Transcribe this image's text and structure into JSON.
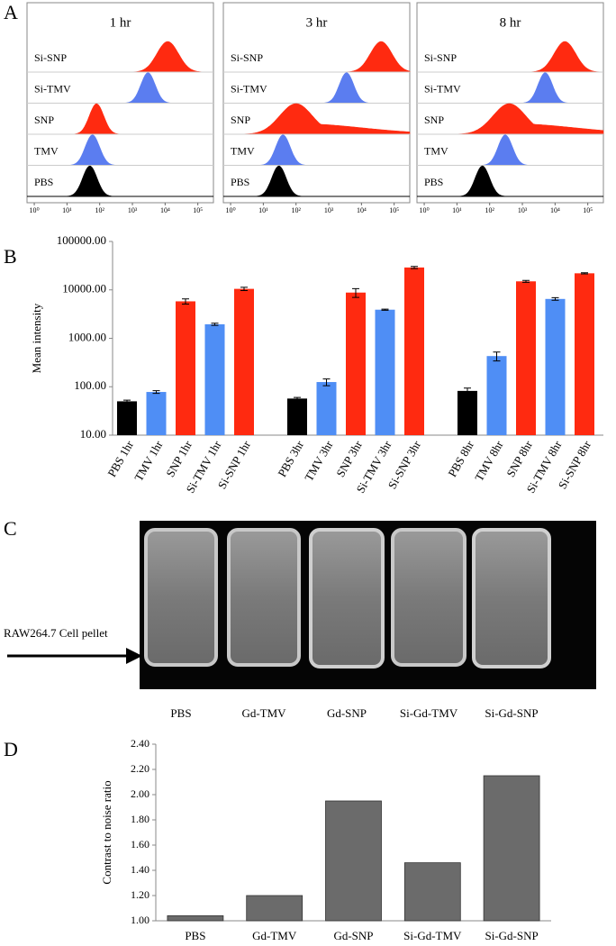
{
  "panel_labels": [
    "A",
    "B",
    "C",
    "D"
  ],
  "chart_data": [
    {
      "type": "flow",
      "title": "1 hr",
      "log_x": true,
      "xlim": [
        0.6,
        300000
      ],
      "xticks": [
        {
          "value": 1,
          "label": "10⁰"
        },
        {
          "value": 10,
          "label": "10¹"
        },
        {
          "value": 100,
          "label": "10²"
        },
        {
          "value": 1000,
          "label": "10³"
        },
        {
          "value": 10000,
          "label": "10⁴"
        },
        {
          "value": 100000,
          "label": "10⁵"
        }
      ],
      "series": [
        {
          "name": "Si-SNP",
          "color": "#ff2a10",
          "peak": 12000
        },
        {
          "name": "Si-TMV",
          "color": "#5b7df0",
          "peak": 3000
        },
        {
          "name": "SNP",
          "color": "#ff2a10",
          "peak": 80
        },
        {
          "name": "TMV",
          "color": "#5b7df0",
          "peak": 60
        },
        {
          "name": "PBS",
          "color": "#000000",
          "peak": 50
        }
      ]
    },
    {
      "type": "flow",
      "title": "3 hr",
      "log_x": true,
      "xlim": [
        0.6,
        300000
      ],
      "xticks": [
        {
          "value": 1,
          "label": "10⁰"
        },
        {
          "value": 10,
          "label": "10¹"
        },
        {
          "value": 100,
          "label": "10²"
        },
        {
          "value": 1000,
          "label": "10³"
        },
        {
          "value": 10000,
          "label": "10⁴"
        },
        {
          "value": 100000,
          "label": "10⁵"
        }
      ],
      "series": [
        {
          "name": "Si-SNP",
          "color": "#ff2a10",
          "peak": 40000
        },
        {
          "name": "Si-TMV",
          "color": "#5b7df0",
          "peak": 3500
        },
        {
          "name": "SNP",
          "color": "#ff2a10",
          "peak": 100
        },
        {
          "name": "TMV",
          "color": "#5b7df0",
          "peak": 40
        },
        {
          "name": "PBS",
          "color": "#000000",
          "peak": 30
        }
      ]
    },
    {
      "type": "flow",
      "title": "8 hr",
      "log_x": true,
      "xlim": [
        0.6,
        300000
      ],
      "xticks": [
        {
          "value": 1,
          "label": "10⁰"
        },
        {
          "value": 10,
          "label": "10¹"
        },
        {
          "value": 100,
          "label": "10²"
        },
        {
          "value": 1000,
          "label": "10³"
        },
        {
          "value": 10000,
          "label": "10⁴"
        },
        {
          "value": 100000,
          "label": "10⁵"
        }
      ],
      "series": [
        {
          "name": "Si-SNP",
          "color": "#ff2a10",
          "peak": 20000
        },
        {
          "name": "Si-TMV",
          "color": "#5b7df0",
          "peak": 5000
        },
        {
          "name": "SNP",
          "color": "#ff2a10",
          "peak": 400
        },
        {
          "name": "TMV",
          "color": "#5b7df0",
          "peak": 300
        },
        {
          "name": "PBS",
          "color": "#000000",
          "peak": 60
        }
      ]
    },
    {
      "type": "bar",
      "y_label": "Mean intensity",
      "log_y": true,
      "grid": false,
      "categories": [
        "PBS 1hr",
        "TMV 1hr",
        "SNP 1hr",
        "Si-TMV 1hr",
        "Si-SNP 1hr",
        "PBS 3hr",
        "TMV 3hr",
        "SNP 3hr",
        "Si-TMV 3hr",
        "Si-SNP 3hr",
        "PBS 8hr",
        "TMV 8hr",
        "SNP 8hr",
        "Si-TMV 8hr",
        "Si-SNP 8hr"
      ],
      "values": [
        50,
        78,
        5800,
        1950,
        10500,
        57,
        125,
        8800,
        3900,
        29000,
        82,
        430,
        15000,
        6500,
        22000
      ],
      "errors": [
        3,
        5,
        700,
        100,
        800,
        3,
        20,
        1800,
        100,
        1500,
        12,
        90,
        700,
        400,
        600
      ],
      "colors": [
        "#000000",
        "#4f8ef5",
        "#ff2a10",
        "#4f8ef5",
        "#ff2a10",
        "#000000",
        "#4f8ef5",
        "#ff2a10",
        "#4f8ef5",
        "#ff2a10",
        "#000000",
        "#4f8ef5",
        "#ff2a10",
        "#4f8ef5",
        "#ff2a10"
      ],
      "ylim": [
        10,
        100000
      ],
      "yticks": [
        {
          "value": 10,
          "label": "10.00"
        },
        {
          "value": 100,
          "label": "100.00"
        },
        {
          "value": 1000,
          "label": "1000.00"
        },
        {
          "value": 10000,
          "label": "10000.00"
        },
        {
          "value": 100000,
          "label": "100000.00"
        }
      ]
    },
    {
      "type": "bar",
      "y_label": "Contrast to noise ratio",
      "log_y": false,
      "grid": false,
      "categories": [
        "PBS",
        "Gd-TMV",
        "Gd-SNP",
        "Si-Gd-TMV",
        "Si-Gd-SNP"
      ],
      "values": [
        1.04,
        1.2,
        1.95,
        1.46,
        2.15
      ],
      "color": "#6b6b6b",
      "ylim": [
        1.0,
        2.4
      ],
      "yticks": [
        {
          "value": 1.0,
          "label": "1.00"
        },
        {
          "value": 1.2,
          "label": "1.20"
        },
        {
          "value": 1.4,
          "label": "1.40"
        },
        {
          "value": 1.6,
          "label": "1.60"
        },
        {
          "value": 1.8,
          "label": "1.80"
        },
        {
          "value": 2.0,
          "label": "2.00"
        },
        {
          "value": 2.2,
          "label": "2.20"
        },
        {
          "value": 2.4,
          "label": "2.40"
        }
      ]
    }
  ],
  "image": {
    "annotation": "RAW264.7 Cell pellet",
    "labels": [
      "PBS",
      "Gd-TMV",
      "Gd-SNP",
      "Si-Gd-TMV",
      "Si-Gd-SNP"
    ]
  }
}
